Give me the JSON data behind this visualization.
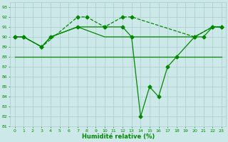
{
  "xlabel": "Humidité relative (%)",
  "background_color": "#cce8e8",
  "grid_color": "#aacccc",
  "line_color": "#008800",
  "xlim": [
    -0.5,
    23.5
  ],
  "ylim": [
    81,
    93.5
  ],
  "yticks": [
    81,
    82,
    83,
    84,
    85,
    86,
    87,
    88,
    89,
    90,
    91,
    92,
    93
  ],
  "xticks": [
    0,
    1,
    2,
    3,
    4,
    5,
    6,
    7,
    8,
    9,
    10,
    11,
    12,
    13,
    14,
    15,
    16,
    17,
    18,
    19,
    20,
    21,
    22,
    23
  ],
  "series": [
    {
      "x": [
        0,
        1,
        3,
        7,
        8,
        10,
        12,
        13,
        20,
        22,
        23
      ],
      "y": [
        90,
        90,
        89,
        92,
        92,
        91,
        92,
        92,
        90,
        91,
        91
      ],
      "linestyle": "--",
      "marker": "D",
      "markersize": 2.5,
      "linewidth": 0.9
    },
    {
      "x": [
        0,
        1,
        3,
        4,
        7,
        10,
        13,
        20,
        22,
        23
      ],
      "y": [
        90,
        90,
        89,
        90,
        91,
        90,
        90,
        90,
        91,
        91
      ],
      "linestyle": "-",
      "marker": null,
      "markersize": 0,
      "linewidth": 0.9
    },
    {
      "x": [
        0,
        1,
        2,
        3,
        4,
        5,
        6,
        7,
        8,
        9,
        10,
        11,
        12,
        13,
        14,
        15,
        16,
        17,
        18,
        19,
        20,
        21,
        22,
        23
      ],
      "y": [
        88,
        88,
        88,
        88,
        88,
        88,
        88,
        88,
        88,
        88,
        88,
        88,
        88,
        88,
        88,
        88,
        88,
        88,
        88,
        88,
        88,
        88,
        88,
        88
      ],
      "linestyle": "-",
      "marker": null,
      "markersize": 0,
      "linewidth": 0.9
    },
    {
      "x": [
        0,
        1,
        3,
        4,
        7,
        10,
        12,
        13,
        14,
        15,
        16,
        17,
        18,
        20,
        21,
        22,
        23
      ],
      "y": [
        90,
        90,
        89,
        90,
        91,
        91,
        91,
        90,
        82,
        85,
        84,
        87,
        88,
        90,
        90,
        91,
        91
      ],
      "linestyle": "-",
      "marker": "D",
      "markersize": 2.5,
      "linewidth": 0.9
    }
  ]
}
